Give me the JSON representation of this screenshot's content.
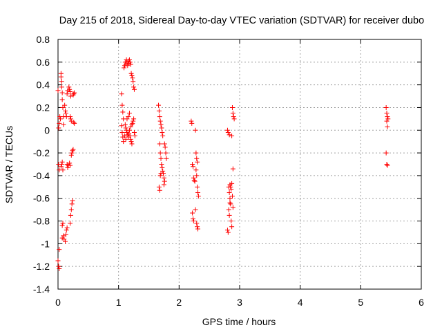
{
  "chart_data": {
    "type": "scatter",
    "title": "Day 215 of 2018, Sidereal Day-to-day VTEC variation (SDTVAR) for receiver dubo",
    "xlabel": "GPS time / hours",
    "ylabel": "SDTVAR / TECUs",
    "xlim": [
      0,
      6
    ],
    "ylim": [
      -1.4,
      0.8
    ],
    "xticks": [
      "0",
      "1",
      "2",
      "3",
      "4",
      "5",
      "6"
    ],
    "yticks": [
      "0.8",
      "0.6",
      "0.4",
      "0.2",
      "0",
      "-0.2",
      "-0.4",
      "-0.6",
      "-0.8",
      "-1",
      "-1.2",
      "-1.4"
    ],
    "grid": true,
    "marker": "+",
    "marker_color": "#ff0000",
    "series": [
      {
        "name": "SDTVAR",
        "points": [
          [
            0.0,
            0.35
          ],
          [
            0.01,
            0.02
          ],
          [
            0.02,
            0.06
          ],
          [
            0.01,
            -0.3
          ],
          [
            0.02,
            -0.35
          ],
          [
            0.0,
            -1.15
          ],
          [
            0.01,
            -1.2
          ],
          [
            0.02,
            -1.22
          ],
          [
            0.03,
            0.12
          ],
          [
            0.04,
            0.1
          ],
          [
            0.05,
            0.5
          ],
          [
            0.05,
            0.47
          ],
          [
            0.06,
            0.43
          ],
          [
            0.06,
            0.38
          ],
          [
            0.07,
            0.33
          ],
          [
            0.07,
            0.27
          ],
          [
            0.08,
            0.2
          ],
          [
            0.09,
            0.12
          ],
          [
            0.09,
            0.05
          ],
          [
            0.05,
            -0.32
          ],
          [
            0.06,
            -0.3
          ],
          [
            0.07,
            -0.28
          ],
          [
            0.08,
            -0.35
          ],
          [
            0.07,
            -0.84
          ],
          [
            0.08,
            -0.82
          ],
          [
            0.07,
            -0.95
          ],
          [
            0.09,
            -0.93
          ],
          [
            0.1,
            -0.96
          ],
          [
            0.11,
            0.22
          ],
          [
            0.12,
            0.17
          ],
          [
            0.13,
            0.15
          ],
          [
            0.14,
            0.12
          ],
          [
            0.15,
            0.32
          ],
          [
            0.16,
            0.35
          ],
          [
            0.12,
            -0.98
          ],
          [
            0.13,
            -0.92
          ],
          [
            0.14,
            -0.88
          ],
          [
            0.15,
            -0.86
          ],
          [
            0.16,
            -0.33
          ],
          [
            0.15,
            -0.3
          ],
          [
            0.17,
            -0.31
          ],
          [
            0.18,
            0.38
          ],
          [
            0.19,
            0.36
          ],
          [
            0.2,
            0.34
          ],
          [
            0.21,
            0.3
          ],
          [
            0.2,
            0.12
          ],
          [
            0.21,
            0.1
          ],
          [
            0.22,
            0.08
          ],
          [
            0.2,
            -0.82
          ],
          [
            0.21,
            -0.75
          ],
          [
            0.22,
            -0.7
          ],
          [
            0.23,
            -0.65
          ],
          [
            0.24,
            -0.62
          ],
          [
            0.22,
            -0.22
          ],
          [
            0.23,
            -0.2
          ],
          [
            0.24,
            -0.18
          ],
          [
            0.25,
            -0.17
          ],
          [
            0.25,
            0.31
          ],
          [
            0.26,
            0.32
          ],
          [
            0.27,
            0.33
          ],
          [
            0.26,
            0.07
          ],
          [
            0.27,
            0.06
          ],
          [
            0.19,
            -0.29
          ],
          [
            0.2,
            -0.31
          ],
          [
            0.02,
            -1.05
          ],
          [
            1.05,
            0.32
          ],
          [
            1.06,
            0.22
          ],
          [
            1.07,
            0.16
          ],
          [
            1.08,
            0.1
          ],
          [
            1.05,
            0.04
          ],
          [
            1.06,
            -0.02
          ],
          [
            1.07,
            -0.06
          ],
          [
            1.08,
            -0.1
          ],
          [
            1.09,
            0.55
          ],
          [
            1.1,
            0.57
          ],
          [
            1.11,
            0.6
          ],
          [
            1.12,
            0.58
          ],
          [
            1.13,
            0.62
          ],
          [
            1.14,
            0.6
          ],
          [
            1.15,
            0.57
          ],
          [
            1.16,
            0.61
          ],
          [
            1.17,
            0.59
          ],
          [
            1.18,
            0.62
          ],
          [
            1.19,
            0.6
          ],
          [
            1.2,
            0.58
          ],
          [
            1.21,
            0.5
          ],
          [
            1.22,
            0.48
          ],
          [
            1.23,
            0.46
          ],
          [
            1.24,
            0.43
          ],
          [
            1.25,
            0.38
          ],
          [
            1.26,
            0.36
          ],
          [
            1.11,
            0.05
          ],
          [
            1.12,
            0.02
          ],
          [
            1.13,
            0.0
          ],
          [
            1.14,
            -0.02
          ],
          [
            1.15,
            -0.04
          ],
          [
            1.16,
            -0.06
          ],
          [
            1.17,
            -0.03
          ],
          [
            1.18,
            0.0
          ],
          [
            1.19,
            -0.05
          ],
          [
            1.2,
            -0.08
          ],
          [
            1.21,
            -0.1
          ],
          [
            1.22,
            -0.12
          ],
          [
            1.23,
            0.06
          ],
          [
            1.24,
            0.08
          ],
          [
            1.25,
            0.1
          ],
          [
            1.26,
            -0.02
          ],
          [
            1.27,
            -0.05
          ],
          [
            1.1,
            -0.05
          ],
          [
            1.12,
            -0.08
          ],
          [
            1.14,
            0.1
          ],
          [
            1.16,
            0.12
          ],
          [
            1.18,
            0.15
          ],
          [
            1.2,
            0.03
          ],
          [
            1.22,
            0.05
          ],
          [
            1.66,
            0.22
          ],
          [
            1.67,
            0.17
          ],
          [
            1.68,
            0.12
          ],
          [
            1.69,
            0.08
          ],
          [
            1.7,
            0.05
          ],
          [
            1.71,
            0.02
          ],
          [
            1.72,
            -0.02
          ],
          [
            1.73,
            -0.05
          ],
          [
            1.68,
            -0.12
          ],
          [
            1.69,
            -0.2
          ],
          [
            1.7,
            -0.25
          ],
          [
            1.71,
            -0.3
          ],
          [
            1.72,
            -0.33
          ],
          [
            1.73,
            -0.36
          ],
          [
            1.74,
            -0.38
          ],
          [
            1.75,
            -0.42
          ],
          [
            1.67,
            -0.5
          ],
          [
            1.68,
            -0.53
          ],
          [
            1.69,
            -0.4
          ],
          [
            1.7,
            -0.38
          ],
          [
            1.76,
            -0.12
          ],
          [
            1.77,
            -0.15
          ],
          [
            1.78,
            -0.2
          ],
          [
            1.79,
            -0.25
          ],
          [
            1.76,
            -0.45
          ],
          [
            1.75,
            -0.48
          ],
          [
            2.2,
            0.08
          ],
          [
            2.21,
            0.06
          ],
          [
            2.22,
            -0.3
          ],
          [
            2.23,
            -0.32
          ],
          [
            2.24,
            -0.42
          ],
          [
            2.25,
            -0.44
          ],
          [
            2.22,
            -0.73
          ],
          [
            2.23,
            -0.78
          ],
          [
            2.24,
            -0.8
          ],
          [
            2.27,
            0.0
          ],
          [
            2.28,
            -0.2
          ],
          [
            2.29,
            -0.25
          ],
          [
            2.3,
            -0.28
          ],
          [
            2.28,
            -0.35
          ],
          [
            2.29,
            -0.4
          ],
          [
            2.3,
            -0.5
          ],
          [
            2.31,
            -0.55
          ],
          [
            2.32,
            -0.58
          ],
          [
            2.29,
            -0.82
          ],
          [
            2.3,
            -0.85
          ],
          [
            2.31,
            -0.87
          ],
          [
            2.26,
            -0.45
          ],
          [
            2.27,
            -0.7
          ],
          [
            2.8,
            0.0
          ],
          [
            2.81,
            -0.02
          ],
          [
            2.82,
            -0.5
          ],
          [
            2.83,
            -0.55
          ],
          [
            2.84,
            -0.6
          ],
          [
            2.85,
            -0.65
          ],
          [
            2.8,
            -0.88
          ],
          [
            2.81,
            -0.9
          ],
          [
            2.82,
            -0.7
          ],
          [
            2.83,
            -0.75
          ],
          [
            2.84,
            -0.48
          ],
          [
            2.85,
            -0.5
          ],
          [
            2.86,
            -0.52
          ],
          [
            2.87,
            -0.47
          ],
          [
            2.88,
            -0.58
          ],
          [
            2.89,
            -0.68
          ],
          [
            2.86,
            -0.8
          ],
          [
            2.87,
            -0.85
          ],
          [
            2.88,
            0.2
          ],
          [
            2.89,
            0.15
          ],
          [
            2.9,
            0.12
          ],
          [
            2.91,
            0.1
          ],
          [
            2.87,
            -0.05
          ],
          [
            2.89,
            -0.34
          ],
          [
            2.83,
            -0.04
          ],
          [
            2.84,
            -0.64
          ],
          [
            5.42,
            0.2
          ],
          [
            5.43,
            0.15
          ],
          [
            5.44,
            0.12
          ],
          [
            5.45,
            0.1
          ],
          [
            5.43,
            0.08
          ],
          [
            5.44,
            0.03
          ],
          [
            5.42,
            -0.2
          ],
          [
            5.43,
            -0.3
          ],
          [
            5.44,
            -0.31
          ]
        ]
      }
    ]
  }
}
